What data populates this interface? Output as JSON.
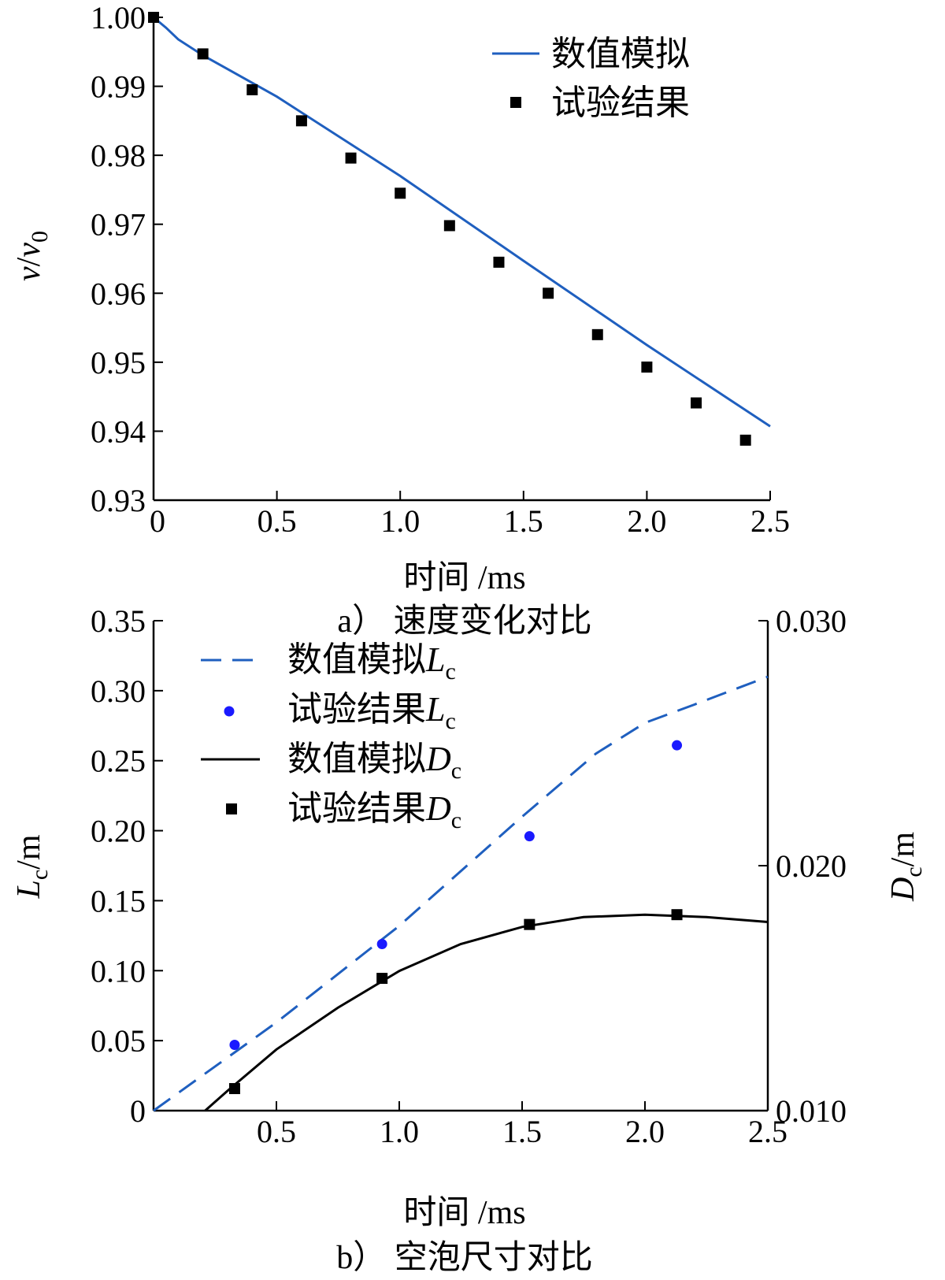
{
  "chart_data": [
    {
      "type": "line",
      "caption": "a）  速度变化对比",
      "xlabel": "时间 /ms",
      "ylabel": {
        "main": "v",
        "slash": "/",
        "sub_main": "v",
        "sub": "0"
      },
      "xlim": [
        0,
        2.5
      ],
      "ylim": [
        0.93,
        1.0
      ],
      "xticks": [
        0,
        0.5,
        1.0,
        1.5,
        2.0,
        2.5
      ],
      "xtick_labels": [
        "0",
        "0.5",
        "1.0",
        "1.5",
        "2.0",
        "2.5"
      ],
      "yticks": [
        0.93,
        0.94,
        0.95,
        0.96,
        0.97,
        0.98,
        0.99,
        1.0
      ],
      "ytick_labels": [
        "0.93",
        "0.94",
        "0.95",
        "0.96",
        "0.97",
        "0.98",
        "0.99",
        "1.00"
      ],
      "legend_position": "top-right",
      "series": [
        {
          "name": "数值模拟",
          "kind": "line",
          "color": "#1f5fbf",
          "x": [
            0,
            0.05,
            0.1,
            0.2,
            0.3,
            0.5,
            1.0,
            1.5,
            2.0,
            2.5
          ],
          "y": [
            1.0,
            0.9985,
            0.9968,
            0.9945,
            0.9925,
            0.9885,
            0.977,
            0.9647,
            0.9525,
            0.9407
          ]
        },
        {
          "name": "试验结果",
          "kind": "scatter",
          "marker": "square",
          "color": "#000000",
          "x": [
            0,
            0.2,
            0.4,
            0.6,
            0.8,
            1.0,
            1.2,
            1.4,
            1.6,
            1.8,
            2.0,
            2.2,
            2.4
          ],
          "y": [
            1.0,
            0.9947,
            0.9895,
            0.985,
            0.9796,
            0.9745,
            0.9698,
            0.9645,
            0.96,
            0.954,
            0.9493,
            0.9441,
            0.9387
          ]
        }
      ]
    },
    {
      "type": "line",
      "caption": "b）  空泡尺寸对比",
      "xlabel": "时间 /ms",
      "ylabel_left": {
        "main": "L",
        "sub": "c",
        "unit": "/m"
      },
      "ylabel_right": {
        "main": "D",
        "sub": "c",
        "unit": "/m"
      },
      "xlim": [
        0,
        2.5
      ],
      "ylim_left": [
        0,
        0.35
      ],
      "ylim_right": [
        0.01,
        0.03
      ],
      "xticks": [
        0.5,
        1.0,
        1.5,
        2.0,
        2.5
      ],
      "xtick_labels": [
        "0.5",
        "1.0",
        "1.5",
        "2.0",
        "2.5"
      ],
      "yticks_left": [
        0,
        0.05,
        0.1,
        0.15,
        0.2,
        0.25,
        0.3,
        0.35
      ],
      "ytick_labels_left": [
        "0",
        "0.05",
        "0.10",
        "0.15",
        "0.20",
        "0.25",
        "0.30",
        "0.35"
      ],
      "yticks_right": [
        0.01,
        0.02,
        0.03
      ],
      "ytick_labels_right": [
        "0.010",
        "0.020",
        "0.030"
      ],
      "legend_position": "top-left",
      "series": [
        {
          "name": "数值模拟",
          "symbol": "L",
          "sub": "c",
          "kind": "line",
          "dash": true,
          "axis": "left",
          "color": "#1f5fbf",
          "x": [
            0,
            0.5,
            1.0,
            1.5,
            1.8,
            2.0,
            2.2,
            2.5
          ],
          "y": [
            0,
            0.063,
            0.132,
            0.21,
            0.255,
            0.277,
            0.29,
            0.31
          ]
        },
        {
          "name": "试验结果",
          "symbol": "L",
          "sub": "c",
          "kind": "scatter",
          "marker": "circle",
          "axis": "left",
          "color": "#1a1aff",
          "x": [
            0.33,
            0.93,
            1.53,
            2.13
          ],
          "y": [
            0.047,
            0.119,
            0.196,
            0.261
          ]
        },
        {
          "name": "数值模拟",
          "symbol": "D",
          "sub": "c",
          "kind": "line",
          "dash": false,
          "axis": "right",
          "color": "#000000",
          "x": [
            0.21,
            0.3,
            0.5,
            0.75,
            1.0,
            1.25,
            1.5,
            1.75,
            2.0,
            2.25,
            2.5
          ],
          "y": [
            0.01,
            0.0108,
            0.0125,
            0.0142,
            0.0157,
            0.0168,
            0.0175,
            0.0179,
            0.018,
            0.0179,
            0.0177
          ]
        },
        {
          "name": "试验结果",
          "symbol": "D",
          "sub": "c",
          "kind": "scatter",
          "marker": "square",
          "axis": "right",
          "color": "#000000",
          "x": [
            0.33,
            0.93,
            1.53,
            2.13
          ],
          "y": [
            0.0109,
            0.0154,
            0.0176,
            0.018
          ]
        }
      ]
    }
  ]
}
